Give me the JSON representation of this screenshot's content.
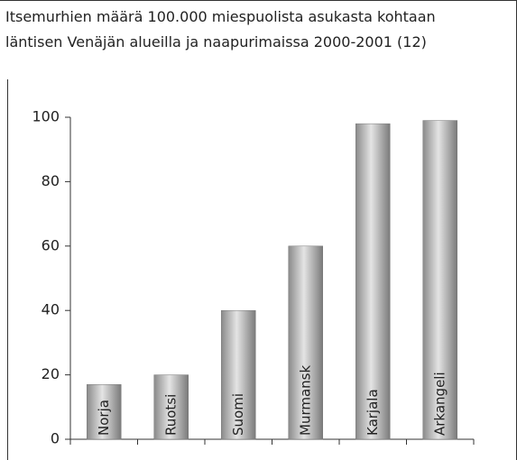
{
  "chart_data": {
    "type": "bar",
    "title": [
      "Itsemurhien määrä 100.000 miespuolista asukasta kohtaan",
      "läntisen Venäjän alueilla ja naapurimaissa 2000-2001 (12)"
    ],
    "categories": [
      "Norja",
      "Ruotsi",
      "Suomi",
      "Murmansk",
      "Karjala",
      "Arkangeli"
    ],
    "values": [
      17,
      20,
      40,
      60,
      98,
      99
    ],
    "color": "#b0b0b0",
    "ylim": [
      0,
      100
    ],
    "yticks": [
      0,
      20,
      40,
      60,
      80,
      100
    ],
    "grid": false
  }
}
